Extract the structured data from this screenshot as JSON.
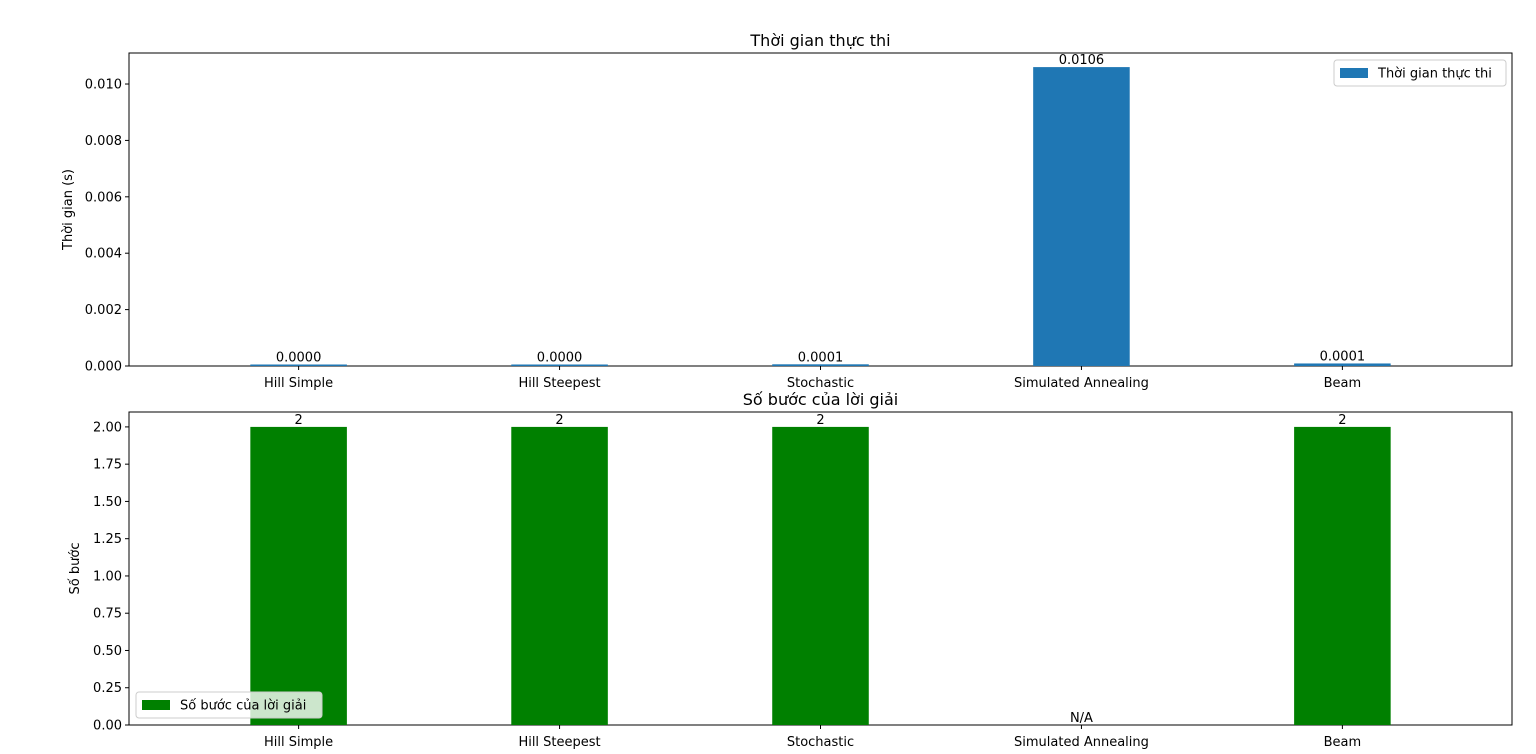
{
  "chart_data": [
    {
      "type": "bar",
      "title": "Thời gian thực thi",
      "xlabel": "",
      "ylabel": "Thời gian (s)",
      "categories": [
        "Hill Simple",
        "Hill Steepest",
        "Stochastic",
        "Simulated Annealing",
        "Beam"
      ],
      "series": [
        {
          "name": "Thời gian thực thi",
          "color": "#1f77b4",
          "values": [
            3e-05,
            1e-05,
            6e-05,
            0.0106,
            9e-05
          ],
          "value_labels": [
            "0.0000",
            "0.0000",
            "0.0001",
            "0.0106",
            "0.0001"
          ]
        }
      ],
      "ylim": [
        0,
        0.0111
      ],
      "yticks": [
        "0.000",
        "0.002",
        "0.004",
        "0.006",
        "0.008",
        "0.010"
      ],
      "ytick_values": [
        0,
        0.002,
        0.004,
        0.006,
        0.008,
        0.01
      ],
      "grid": false,
      "legend_position": "top-right"
    },
    {
      "type": "bar",
      "title": "Số bước của lời giải",
      "xlabel": "",
      "ylabel": "Số bước",
      "categories": [
        "Hill Simple",
        "Hill Steepest",
        "Stochastic",
        "Simulated Annealing",
        "Beam"
      ],
      "series": [
        {
          "name": "Số bước của lời giải",
          "color": "#008000",
          "values": [
            2,
            2,
            2,
            0,
            2
          ],
          "value_labels": [
            "2",
            "2",
            "2",
            "N/A",
            "2"
          ]
        }
      ],
      "ylim": [
        0,
        2.1
      ],
      "yticks": [
        "0.00",
        "0.25",
        "0.50",
        "0.75",
        "1.00",
        "1.25",
        "1.50",
        "1.75",
        "2.00"
      ],
      "ytick_values": [
        0,
        0.25,
        0.5,
        0.75,
        1.0,
        1.25,
        1.5,
        1.75,
        2.0
      ],
      "grid": false,
      "legend_position": "bottom-left"
    }
  ]
}
